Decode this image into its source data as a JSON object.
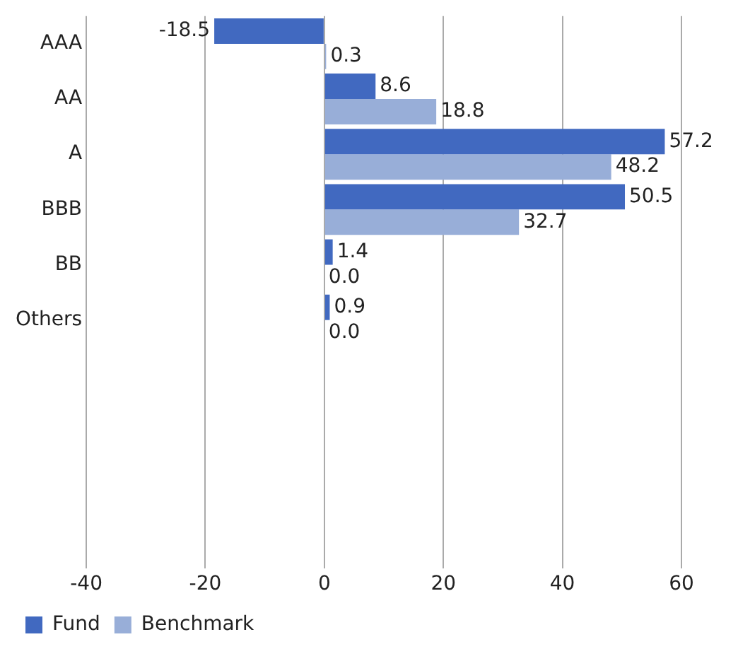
{
  "chart_data": {
    "type": "bar",
    "orientation": "horizontal",
    "categories": [
      "AAA",
      "AA",
      "A",
      "BBB",
      "BB",
      "Others",
      null,
      null,
      null,
      null
    ],
    "series": [
      {
        "name": "Fund",
        "color": "#4169c0",
        "values": [
          -18.5,
          8.6,
          57.2,
          50.5,
          1.4,
          0.9,
          null,
          null,
          null,
          null
        ],
        "value_labels": [
          "-18.5",
          "8.6",
          "57.2",
          "50.5",
          "1.4",
          "0.9",
          null,
          null,
          null,
          null
        ]
      },
      {
        "name": "Benchmark",
        "color": "#98aed8",
        "values": [
          0.3,
          18.8,
          48.2,
          32.7,
          0,
          0,
          null,
          null,
          null,
          null
        ],
        "value_labels": [
          "0.3",
          "18.8",
          "48.2",
          "32.7",
          "0.0",
          "0.0",
          null,
          null,
          null,
          null
        ]
      }
    ],
    "xlim": [
      -40,
      60
    ],
    "xticks": [
      -40,
      -20,
      0,
      20,
      40,
      60
    ],
    "grid": "x",
    "legend": "bottom left"
  }
}
